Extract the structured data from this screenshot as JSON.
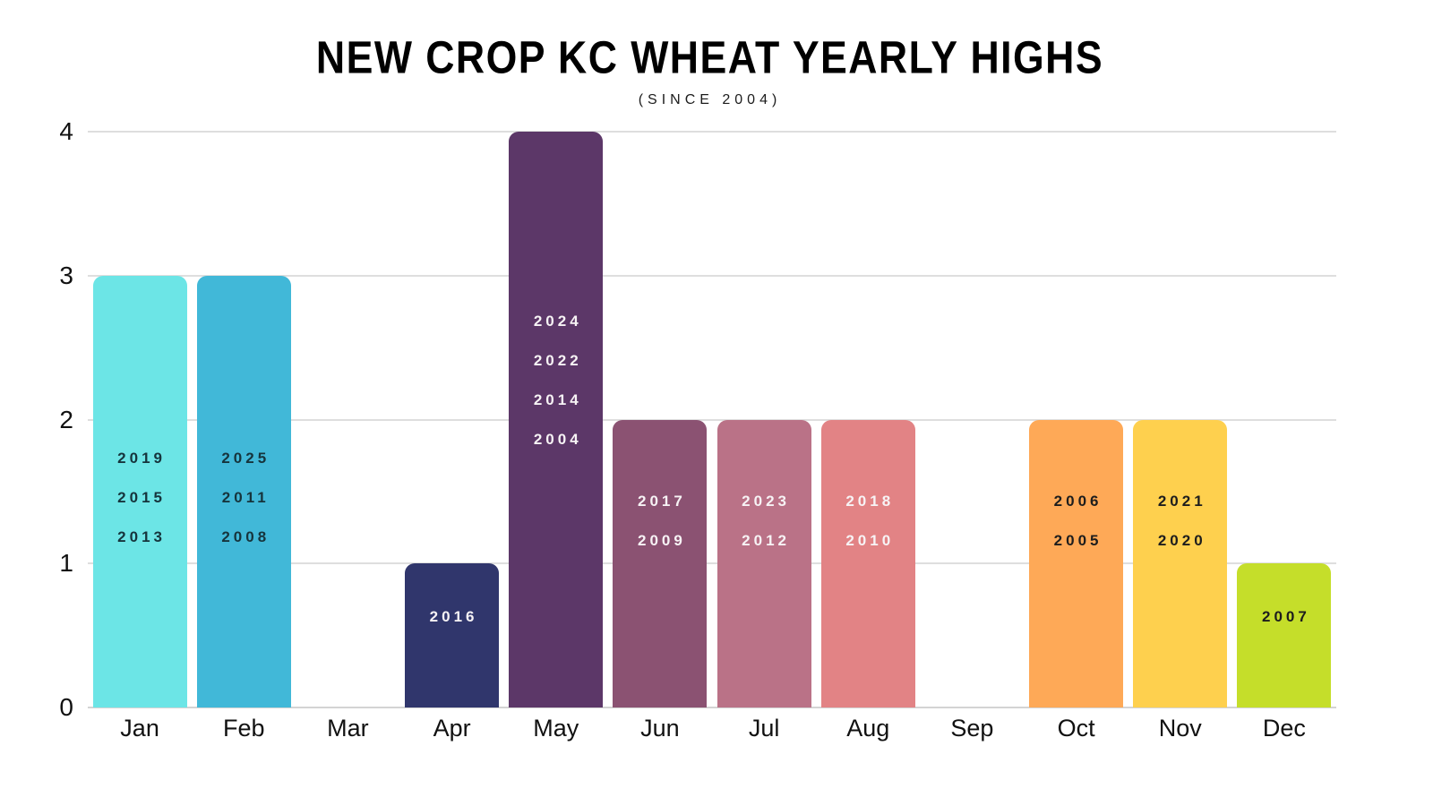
{
  "header": {
    "title": "NEW CROP KC WHEAT YEARLY HIGHS",
    "subtitle": "(SINCE 2004)"
  },
  "chart_data": {
    "type": "bar",
    "title": "NEW CROP KC WHEAT YEARLY HIGHS",
    "subtitle": "(SINCE 2004)",
    "xlabel": "",
    "ylabel": "",
    "ylim": [
      0,
      4
    ],
    "yticks": [
      "0",
      "1",
      "2",
      "3",
      "4"
    ],
    "grid": true,
    "legend_position": "none",
    "categories": [
      "Jan",
      "Feb",
      "Mar",
      "Apr",
      "May",
      "Jun",
      "Jul",
      "Aug",
      "Sep",
      "Oct",
      "Nov",
      "Dec"
    ],
    "values": [
      3,
      3,
      0,
      1,
      4,
      2,
      2,
      2,
      0,
      2,
      2,
      1
    ],
    "bars": [
      {
        "month": "Jan",
        "count": 3,
        "years": [
          "2019",
          "2015",
          "2013"
        ],
        "color": "#6ce5e6",
        "year_text_color": "#16343c"
      },
      {
        "month": "Feb",
        "count": 3,
        "years": [
          "2025",
          "2011",
          "2008"
        ],
        "color": "#41b8d8",
        "year_text_color": "#16343c"
      },
      {
        "month": "Mar",
        "count": 0,
        "years": [],
        "color": null,
        "year_text_color": null
      },
      {
        "month": "Apr",
        "count": 1,
        "years": [
          "2016"
        ],
        "color": "#30366c",
        "year_text_color": "#f7f3f5"
      },
      {
        "month": "May",
        "count": 4,
        "years": [
          "2024",
          "2022",
          "2014",
          "2004"
        ],
        "color": "#5c3768",
        "year_text_color": "#f7f3f5"
      },
      {
        "month": "Jun",
        "count": 2,
        "years": [
          "2017",
          "2009"
        ],
        "color": "#8b5272",
        "year_text_color": "#f7f3f5"
      },
      {
        "month": "Jul",
        "count": 2,
        "years": [
          "2023",
          "2012"
        ],
        "color": "#ba7287",
        "year_text_color": "#f7f3f5"
      },
      {
        "month": "Aug",
        "count": 2,
        "years": [
          "2018",
          "2010"
        ],
        "color": "#e28385",
        "year_text_color": "#f7f3f5"
      },
      {
        "month": "Sep",
        "count": 0,
        "years": [],
        "color": null,
        "year_text_color": null
      },
      {
        "month": "Oct",
        "count": 2,
        "years": [
          "2006",
          "2005"
        ],
        "color": "#fea957",
        "year_text_color": "#1d1d1d"
      },
      {
        "month": "Nov",
        "count": 2,
        "years": [
          "2021",
          "2020"
        ],
        "color": "#fed04e",
        "year_text_color": "#1d1d1d"
      },
      {
        "month": "Dec",
        "count": 1,
        "years": [
          "2007"
        ],
        "color": "#c5de2a",
        "year_text_color": "#1d1d1d"
      }
    ],
    "colors": {
      "background": "#ffffff",
      "grid_line": "#dedede",
      "axis_text": "#111111",
      "title_text": "#000000"
    }
  }
}
